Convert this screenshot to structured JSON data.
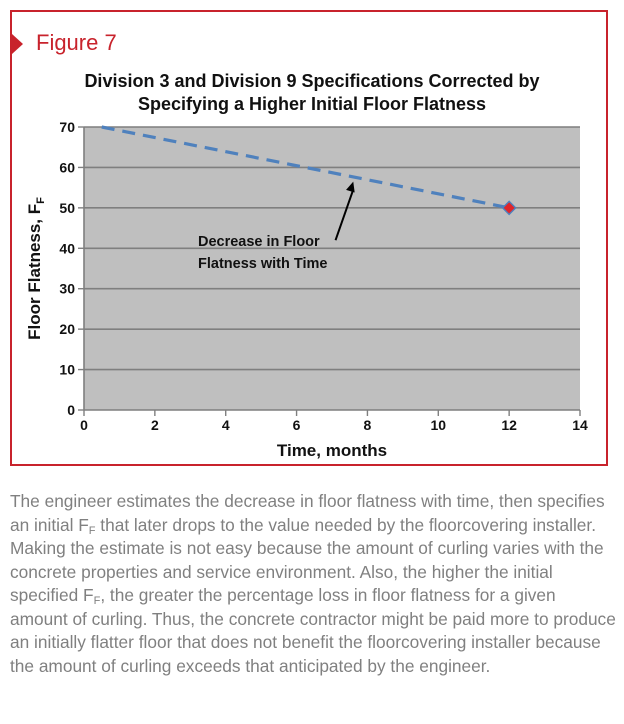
{
  "figure_label": "Figure 7",
  "chart_data": {
    "type": "line",
    "title_lines": [
      "Division 3 and Division 9 Specifications Corrected by",
      "Specifying a Higher Initial Floor Flatness"
    ],
    "xlabel": "Time, months",
    "ylabel": "Floor Flatness, F",
    "ylabel_sub": "F",
    "xlim": [
      0,
      14
    ],
    "ylim": [
      0,
      70
    ],
    "x_ticks": [
      0,
      2,
      4,
      6,
      8,
      10,
      12,
      14
    ],
    "y_ticks": [
      0,
      10,
      20,
      30,
      40,
      50,
      60,
      70
    ],
    "grid": "horizontal",
    "plot_background": "#bfbfbf",
    "series": [
      {
        "style": "dashed",
        "color": "#4f81bd",
        "x": [
          0.5,
          12
        ],
        "y": [
          70,
          50
        ]
      }
    ],
    "marker": {
      "x": 12,
      "y": 50,
      "fill": "#e0252a",
      "edge": "#4f81bd",
      "shape": "diamond"
    },
    "annotation": {
      "lines": [
        "Decrease in Floor",
        "Flatness with Time"
      ],
      "arrow_from": [
        7.1,
        42
      ],
      "arrow_to": [
        7.6,
        56.5
      ]
    }
  },
  "caption": [
    {
      "t": "The engineer estimates the decrease in floor flatness with time, then specifies an initial F"
    },
    {
      "t": "F",
      "sub": true
    },
    {
      "t": " that later drops to the value needed by the floorcovering installer. Making the estimate is not easy because the amount of curling varies with the concrete properties and service environment. Also, the higher the initial specified F"
    },
    {
      "t": "F",
      "sub": true
    },
    {
      "t": ", the greater the percentage loss in floor flatness for a given amount of curling. Thus, the concrete contractor might be paid more to produce an initially flatter floor that does not benefit the floorcovering installer because the amount of curling exceeds that anticipated by the engineer."
    }
  ],
  "colors": {
    "frame": "#c8232c",
    "caption_text": "#808080"
  }
}
